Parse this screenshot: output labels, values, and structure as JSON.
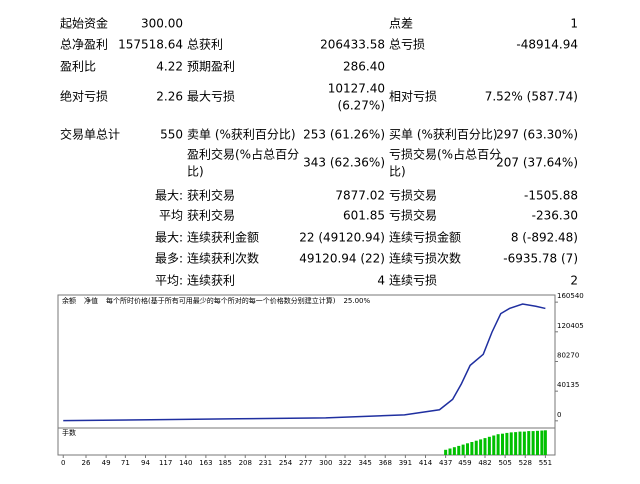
{
  "report": {
    "rows": [
      [
        {
          "slot": "l1",
          "text": "起始资金"
        },
        {
          "slot": "v1",
          "text": "300.00"
        },
        {
          "slot": "l3",
          "text": "点差"
        },
        {
          "slot": "v3",
          "text": "1"
        }
      ],
      [
        {
          "slot": "l1",
          "text": "总净盈利"
        },
        {
          "slot": "v1",
          "text": "157518.64"
        },
        {
          "slot": "l2",
          "text": "总获利"
        },
        {
          "slot": "v2",
          "text": "206433.58"
        },
        {
          "slot": "l3",
          "text": "总亏损"
        },
        {
          "slot": "v3",
          "text": "-48914.94"
        }
      ],
      [
        {
          "slot": "l1",
          "text": "盈利比"
        },
        {
          "slot": "v1",
          "text": "4.22"
        },
        {
          "slot": "l2",
          "text": "预期盈利"
        },
        {
          "slot": "v2",
          "text": "286.40"
        }
      ],
      [
        {
          "slot": "l1",
          "text": "绝对亏损"
        },
        {
          "slot": "v1",
          "text": "2.26"
        },
        {
          "slot": "l2",
          "text": "最大亏损"
        },
        {
          "slot": "v2",
          "text": [
            "10127.40",
            "(6.27%)"
          ]
        },
        {
          "slot": "l3",
          "text": "相对亏损"
        },
        {
          "slot": "v3",
          "text": "7.52% (587.74)"
        }
      ],
      [
        {
          "slot": "l1",
          "text": "交易单总计"
        },
        {
          "slot": "v1",
          "text": "550"
        },
        {
          "slot": "l2",
          "text": "卖单 (%获利百分比)"
        },
        {
          "slot": "v2",
          "text": "253 (61.26%)"
        },
        {
          "slot": "l3",
          "text": "买单 (%获利百分比)"
        },
        {
          "slot": "v3",
          "text": "297 (63.30%)"
        }
      ],
      [
        {
          "slot": "l2",
          "text": [
            "盈利交易(%占总百分",
            "比)"
          ]
        },
        {
          "slot": "v2",
          "text": "343 (62.36%)"
        },
        {
          "slot": "l3",
          "text": [
            "亏损交易(%占总百分",
            "比)"
          ]
        },
        {
          "slot": "v3",
          "text": "207 (37.64%)"
        }
      ],
      [
        {
          "slot": "v1",
          "text": "最大:"
        },
        {
          "slot": "l2",
          "text": "获利交易"
        },
        {
          "slot": "v2",
          "text": "7877.02"
        },
        {
          "slot": "l3",
          "text": "亏损交易"
        },
        {
          "slot": "v3",
          "text": "-1505.88"
        }
      ],
      [
        {
          "slot": "v1",
          "text": "平均"
        },
        {
          "slot": "l2",
          "text": "获利交易"
        },
        {
          "slot": "v2",
          "text": "601.85"
        },
        {
          "slot": "l3",
          "text": "亏损交易"
        },
        {
          "slot": "v3",
          "text": "-236.30"
        }
      ],
      [
        {
          "slot": "v1",
          "text": "最大:"
        },
        {
          "slot": "l2",
          "text": "连续获利金额"
        },
        {
          "slot": "v2",
          "text": "22 (49120.94)"
        },
        {
          "slot": "l3",
          "text": "连续亏损金额"
        },
        {
          "slot": "v3",
          "text": "8 (-892.48)"
        }
      ],
      [
        {
          "slot": "v1",
          "text": "最多:"
        },
        {
          "slot": "l2",
          "text": "连续获利次数"
        },
        {
          "slot": "v2",
          "text": "49120.94 (22)"
        },
        {
          "slot": "l3",
          "text": "连续亏损次数"
        },
        {
          "slot": "v3",
          "text": "-6935.78 (7)"
        }
      ],
      [
        {
          "slot": "v1",
          "text": "平均:"
        },
        {
          "slot": "l2",
          "text": "连续获利"
        },
        {
          "slot": "v2",
          "text": "4"
        },
        {
          "slot": "l3",
          "text": "连续亏损"
        },
        {
          "slot": "v3",
          "text": "2"
        }
      ]
    ]
  },
  "chart_data": {
    "type": "line",
    "tabs": [
      "余额",
      "净值",
      "每个所时价格(基于所有可用最少的每个所对的每一个价格数分别建立计算)",
      "25.00%"
    ],
    "x": [
      0,
      100,
      200,
      300,
      390,
      430,
      445,
      455,
      465,
      480,
      490,
      500,
      510,
      525,
      540,
      551
    ],
    "series": [
      {
        "name": "余额",
        "color": "#1f2fa0",
        "values": [
          300,
          1500,
          2800,
          4000,
          8000,
          15000,
          29000,
          50000,
          75000,
          90000,
          120000,
          145000,
          152000,
          158000,
          155000,
          152000
        ]
      }
    ],
    "xlim": [
      -6,
      562
    ],
    "ylim": [
      -9700,
      170200
    ],
    "xticks": [
      0,
      26,
      49,
      71,
      94,
      117,
      140,
      163,
      185,
      208,
      231,
      254,
      277,
      300,
      322,
      345,
      368,
      391,
      414,
      437,
      459,
      482,
      505,
      528,
      551
    ],
    "yticks": [
      0,
      40135,
      80270,
      120405,
      160540
    ],
    "volume": {
      "label": "手数",
      "color": "#00c000",
      "vlim": [
        0,
        1
      ],
      "x": [
        437,
        442,
        447,
        452,
        457,
        462,
        467,
        472,
        477,
        482,
        487,
        492,
        497,
        502,
        507,
        512,
        517,
        522,
        527,
        532,
        537,
        542,
        547,
        551
      ],
      "values": [
        0.2,
        0.25,
        0.3,
        0.35,
        0.4,
        0.45,
        0.5,
        0.55,
        0.6,
        0.65,
        0.7,
        0.75,
        0.8,
        0.82,
        0.85,
        0.87,
        0.88,
        0.9,
        0.9,
        0.92,
        0.92,
        0.93,
        0.94,
        0.95
      ]
    }
  }
}
